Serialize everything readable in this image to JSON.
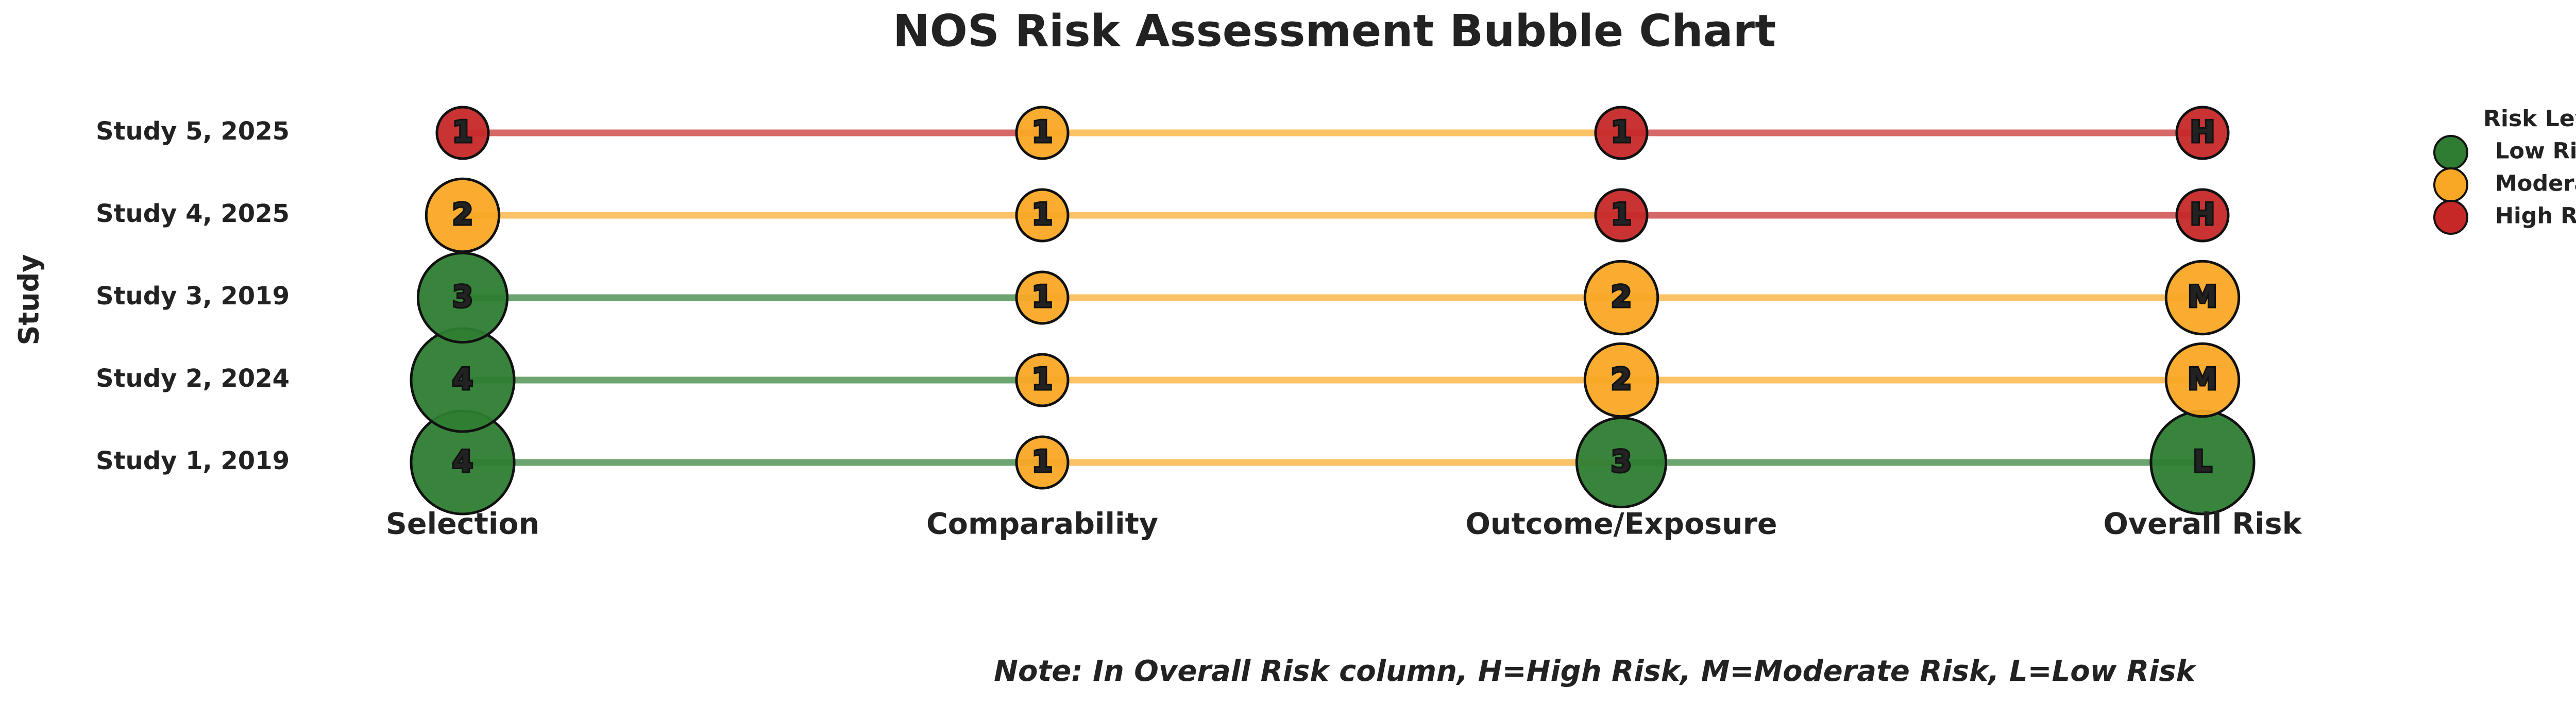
{
  "chart_data": {
    "type": "bubble",
    "title": "NOS Risk Assessment Bubble Chart",
    "y_label": "Study",
    "categories": [
      "Study 1, 2019",
      "Study 2, 2024",
      "Study 3, 2019",
      "Study 4, 2025",
      "Study 5, 2025"
    ],
    "columns": [
      "Selection",
      "Comparability",
      "Outcome/Exposure",
      "Overall Risk"
    ],
    "series": [
      {
        "name": "Selection",
        "values": [
          4,
          4,
          3,
          2,
          1
        ],
        "risk": [
          "Low Risk",
          "Low Risk",
          "Low Risk",
          "Moderate Risk",
          "High Risk"
        ]
      },
      {
        "name": "Comparability",
        "values": [
          1,
          1,
          1,
          1,
          1
        ],
        "risk": [
          "Moderate Risk",
          "Moderate Risk",
          "Moderate Risk",
          "Moderate Risk",
          "Moderate Risk"
        ]
      },
      {
        "name": "Outcome/Exposure",
        "values": [
          3,
          2,
          2,
          1,
          1
        ],
        "risk": [
          "Low Risk",
          "Moderate Risk",
          "Moderate Risk",
          "High Risk",
          "High Risk"
        ]
      }
    ],
    "overall": {
      "name": "Overall Risk",
      "labels": [
        "L",
        "M",
        "M",
        "H",
        "H"
      ],
      "risk": [
        "Low Risk",
        "Moderate Risk",
        "Moderate Risk",
        "High Risk",
        "High Risk"
      ]
    },
    "legend": {
      "title": "Risk Level",
      "position": "upper right",
      "items": [
        {
          "name": "Low Risk",
          "color": "#2e7d32"
        },
        {
          "name": "Moderate Risk",
          "color": "#f9a825"
        },
        {
          "name": "High Risk",
          "color": "#c62828"
        }
      ]
    },
    "note": "Note: In Overall Risk column, H=High Risk, M=Moderate Risk, L=Low Risk"
  }
}
